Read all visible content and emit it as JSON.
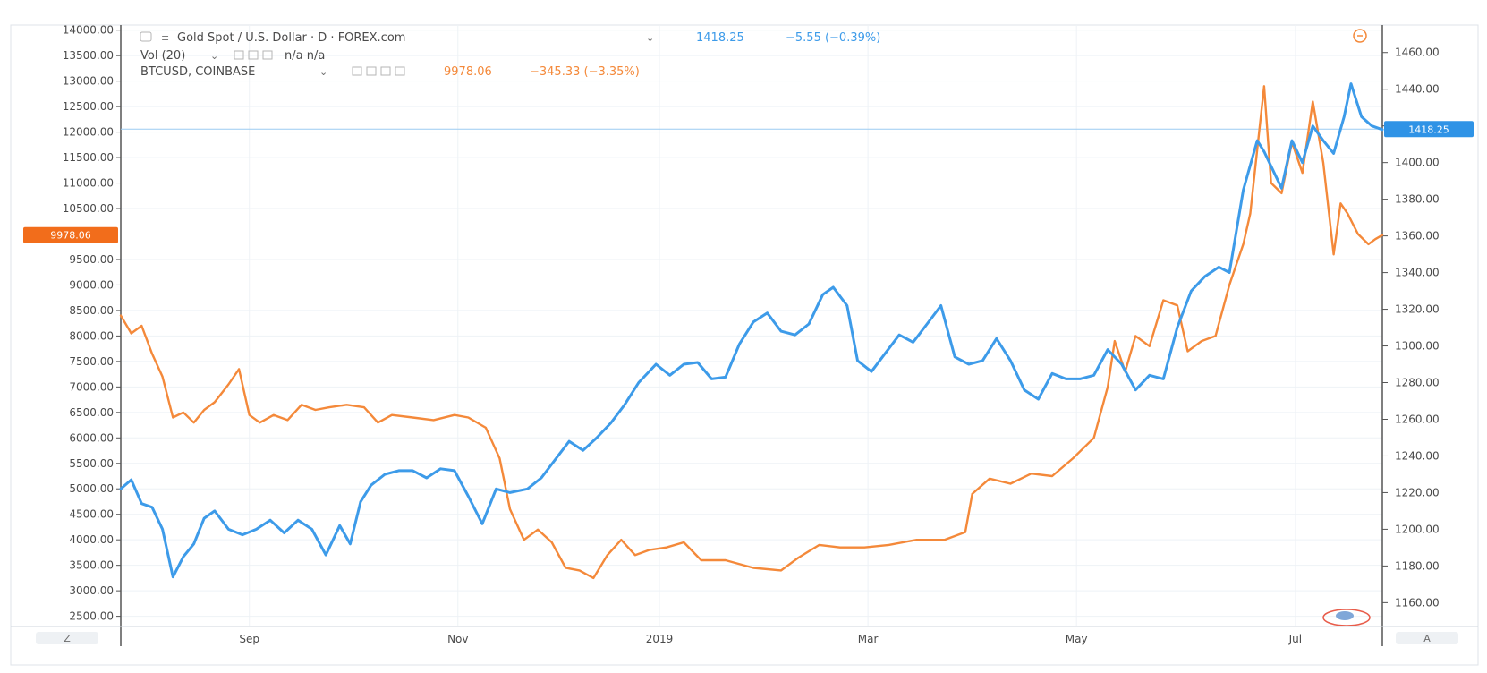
{
  "legend": {
    "gold_title": "Gold Spot / U.S. Dollar · D · FOREX.com",
    "gold_price": "1418.25",
    "gold_change": "−5.55 (−0.39%)",
    "vol_label": "Vol (20)",
    "vol_values": "n/a  n/a",
    "btc_title": "BTCUSD, COINBASE",
    "btc_price": "9978.06",
    "btc_change": "−345.33 (−3.35%)"
  },
  "badges": {
    "btc_last": "9978.06",
    "gold_last": "1418.25"
  },
  "corner_labels": {
    "left": "Z",
    "right": "A"
  },
  "colors": {
    "gold": "#3d9be9",
    "btc": "#f4893a",
    "grid": "#eef2f6",
    "axis": "#555555",
    "text": "#4a4a4a"
  },
  "chart_data": {
    "type": "line",
    "x_ticks": [
      "Sep",
      "Nov",
      "2019",
      "Mar",
      "May",
      "Jul"
    ],
    "left_axis": {
      "ticks": [
        "2500.00",
        "3000.00",
        "3500.00",
        "4000.00",
        "4500.00",
        "5000.00",
        "5500.00",
        "6000.00",
        "6500.00",
        "7000.00",
        "7500.00",
        "8000.00",
        "8500.00",
        "9000.00",
        "9500.00",
        "10000.00",
        "10500.00",
        "11000.00",
        "11500.00",
        "12000.00",
        "12500.00",
        "13000.00",
        "13500.00",
        "14000.00"
      ],
      "range": [
        2300,
        14100
      ]
    },
    "right_axis": {
      "ticks": [
        "1160.00",
        "1180.00",
        "1200.00",
        "1220.00",
        "1240.00",
        "1260.00",
        "1280.00",
        "1300.00",
        "1320.00",
        "1340.00",
        "1360.00",
        "1380.00",
        "1400.00",
        "1420.00",
        "1440.00",
        "1460.00"
      ],
      "range": [
        1147,
        1475
      ]
    },
    "x_range": [
      "2018-08-01",
      "2019-07-30"
    ],
    "series": [
      {
        "name": "BTCUSD, COINBASE",
        "axis": "left",
        "color": "#f4893a",
        "points": [
          [
            "2018-08-01",
            8400
          ],
          [
            "2018-08-04",
            8050
          ],
          [
            "2018-08-07",
            8200
          ],
          [
            "2018-08-10",
            7650
          ],
          [
            "2018-08-13",
            7200
          ],
          [
            "2018-08-16",
            6400
          ],
          [
            "2018-08-19",
            6500
          ],
          [
            "2018-08-22",
            6300
          ],
          [
            "2018-08-25",
            6550
          ],
          [
            "2018-08-28",
            6700
          ],
          [
            "2018-09-01",
            7050
          ],
          [
            "2018-09-04",
            7350
          ],
          [
            "2018-09-07",
            6450
          ],
          [
            "2018-09-10",
            6300
          ],
          [
            "2018-09-14",
            6450
          ],
          [
            "2018-09-18",
            6350
          ],
          [
            "2018-09-22",
            6650
          ],
          [
            "2018-09-26",
            6550
          ],
          [
            "2018-09-30",
            6600
          ],
          [
            "2018-10-05",
            6650
          ],
          [
            "2018-10-10",
            6600
          ],
          [
            "2018-10-14",
            6300
          ],
          [
            "2018-10-18",
            6450
          ],
          [
            "2018-10-24",
            6400
          ],
          [
            "2018-10-30",
            6350
          ],
          [
            "2018-11-05",
            6450
          ],
          [
            "2018-11-09",
            6400
          ],
          [
            "2018-11-14",
            6200
          ],
          [
            "2018-11-18",
            5600
          ],
          [
            "2018-11-21",
            4600
          ],
          [
            "2018-11-25",
            4000
          ],
          [
            "2018-11-29",
            4200
          ],
          [
            "2018-12-03",
            3950
          ],
          [
            "2018-12-07",
            3450
          ],
          [
            "2018-12-11",
            3400
          ],
          [
            "2018-12-15",
            3250
          ],
          [
            "2018-12-19",
            3700
          ],
          [
            "2018-12-23",
            4000
          ],
          [
            "2018-12-27",
            3700
          ],
          [
            "2018-12-31",
            3800
          ],
          [
            "2019-01-05",
            3850
          ],
          [
            "2019-01-10",
            3950
          ],
          [
            "2019-01-15",
            3600
          ],
          [
            "2019-01-22",
            3600
          ],
          [
            "2019-01-30",
            3450
          ],
          [
            "2019-02-07",
            3400
          ],
          [
            "2019-02-12",
            3650
          ],
          [
            "2019-02-18",
            3900
          ],
          [
            "2019-02-24",
            3850
          ],
          [
            "2019-03-03",
            3850
          ],
          [
            "2019-03-10",
            3900
          ],
          [
            "2019-03-18",
            4000
          ],
          [
            "2019-03-26",
            4000
          ],
          [
            "2019-04-01",
            4150
          ],
          [
            "2019-04-03",
            4900
          ],
          [
            "2019-04-08",
            5200
          ],
          [
            "2019-04-14",
            5100
          ],
          [
            "2019-04-20",
            5300
          ],
          [
            "2019-04-26",
            5250
          ],
          [
            "2019-05-02",
            5600
          ],
          [
            "2019-05-08",
            6000
          ],
          [
            "2019-05-12",
            7000
          ],
          [
            "2019-05-14",
            7900
          ],
          [
            "2019-05-17",
            7300
          ],
          [
            "2019-05-20",
            8000
          ],
          [
            "2019-05-24",
            7800
          ],
          [
            "2019-05-28",
            8700
          ],
          [
            "2019-06-01",
            8600
          ],
          [
            "2019-06-04",
            7700
          ],
          [
            "2019-06-08",
            7900
          ],
          [
            "2019-06-12",
            8000
          ],
          [
            "2019-06-16",
            9000
          ],
          [
            "2019-06-20",
            9800
          ],
          [
            "2019-06-22",
            10400
          ],
          [
            "2019-06-26",
            12900
          ],
          [
            "2019-06-28",
            11000
          ],
          [
            "2019-07-01",
            10800
          ],
          [
            "2019-07-04",
            11800
          ],
          [
            "2019-07-07",
            11200
          ],
          [
            "2019-07-10",
            12600
          ],
          [
            "2019-07-13",
            11400
          ],
          [
            "2019-07-16",
            9600
          ],
          [
            "2019-07-18",
            10600
          ],
          [
            "2019-07-20",
            10400
          ],
          [
            "2019-07-23",
            10000
          ],
          [
            "2019-07-26",
            9800
          ],
          [
            "2019-07-28",
            9900
          ],
          [
            "2019-07-30",
            9978
          ]
        ]
      },
      {
        "name": "Gold Spot / U.S. Dollar",
        "axis": "right",
        "color": "#3d9be9",
        "points": [
          [
            "2018-08-01",
            1222
          ],
          [
            "2018-08-04",
            1227
          ],
          [
            "2018-08-07",
            1214
          ],
          [
            "2018-08-10",
            1212
          ],
          [
            "2018-08-13",
            1200
          ],
          [
            "2018-08-16",
            1174
          ],
          [
            "2018-08-19",
            1185
          ],
          [
            "2018-08-22",
            1192
          ],
          [
            "2018-08-25",
            1206
          ],
          [
            "2018-08-28",
            1210
          ],
          [
            "2018-09-01",
            1200
          ],
          [
            "2018-09-05",
            1197
          ],
          [
            "2018-09-09",
            1200
          ],
          [
            "2018-09-13",
            1205
          ],
          [
            "2018-09-17",
            1198
          ],
          [
            "2018-09-21",
            1205
          ],
          [
            "2018-09-25",
            1200
          ],
          [
            "2018-09-29",
            1186
          ],
          [
            "2018-10-03",
            1202
          ],
          [
            "2018-10-06",
            1192
          ],
          [
            "2018-10-09",
            1215
          ],
          [
            "2018-10-12",
            1224
          ],
          [
            "2018-10-16",
            1230
          ],
          [
            "2018-10-20",
            1232
          ],
          [
            "2018-10-24",
            1232
          ],
          [
            "2018-10-28",
            1228
          ],
          [
            "2018-11-01",
            1233
          ],
          [
            "2018-11-05",
            1232
          ],
          [
            "2018-11-09",
            1218
          ],
          [
            "2018-11-13",
            1203
          ],
          [
            "2018-11-17",
            1222
          ],
          [
            "2018-11-21",
            1220
          ],
          [
            "2018-11-26",
            1222
          ],
          [
            "2018-11-30",
            1228
          ],
          [
            "2018-12-04",
            1238
          ],
          [
            "2018-12-08",
            1248
          ],
          [
            "2018-12-12",
            1243
          ],
          [
            "2018-12-16",
            1250
          ],
          [
            "2018-12-20",
            1258
          ],
          [
            "2018-12-24",
            1268
          ],
          [
            "2018-12-28",
            1280
          ],
          [
            "2019-01-02",
            1290
          ],
          [
            "2019-01-06",
            1284
          ],
          [
            "2019-01-10",
            1290
          ],
          [
            "2019-01-14",
            1291
          ],
          [
            "2019-01-18",
            1282
          ],
          [
            "2019-01-22",
            1283
          ],
          [
            "2019-01-26",
            1301
          ],
          [
            "2019-01-30",
            1313
          ],
          [
            "2019-02-03",
            1318
          ],
          [
            "2019-02-07",
            1308
          ],
          [
            "2019-02-11",
            1306
          ],
          [
            "2019-02-15",
            1312
          ],
          [
            "2019-02-19",
            1328
          ],
          [
            "2019-02-22",
            1332
          ],
          [
            "2019-02-26",
            1322
          ],
          [
            "2019-03-01",
            1292
          ],
          [
            "2019-03-05",
            1286
          ],
          [
            "2019-03-09",
            1296
          ],
          [
            "2019-03-13",
            1306
          ],
          [
            "2019-03-17",
            1302
          ],
          [
            "2019-03-21",
            1312
          ],
          [
            "2019-03-25",
            1322
          ],
          [
            "2019-03-29",
            1294
          ],
          [
            "2019-04-02",
            1290
          ],
          [
            "2019-04-06",
            1292
          ],
          [
            "2019-04-10",
            1304
          ],
          [
            "2019-04-14",
            1292
          ],
          [
            "2019-04-18",
            1276
          ],
          [
            "2019-04-22",
            1271
          ],
          [
            "2019-04-26",
            1285
          ],
          [
            "2019-04-30",
            1282
          ],
          [
            "2019-05-04",
            1282
          ],
          [
            "2019-05-08",
            1284
          ],
          [
            "2019-05-12",
            1298
          ],
          [
            "2019-05-16",
            1290
          ],
          [
            "2019-05-20",
            1276
          ],
          [
            "2019-05-24",
            1284
          ],
          [
            "2019-05-28",
            1282
          ],
          [
            "2019-06-01",
            1310
          ],
          [
            "2019-06-05",
            1330
          ],
          [
            "2019-06-09",
            1338
          ],
          [
            "2019-06-13",
            1343
          ],
          [
            "2019-06-16",
            1340
          ],
          [
            "2019-06-20",
            1385
          ],
          [
            "2019-06-24",
            1412
          ],
          [
            "2019-06-26",
            1406
          ],
          [
            "2019-06-28",
            1398
          ],
          [
            "2019-07-01",
            1386
          ],
          [
            "2019-07-04",
            1412
          ],
          [
            "2019-07-07",
            1400
          ],
          [
            "2019-07-10",
            1420
          ],
          [
            "2019-07-13",
            1412
          ],
          [
            "2019-07-16",
            1405
          ],
          [
            "2019-07-19",
            1425
          ],
          [
            "2019-07-21",
            1443
          ],
          [
            "2019-07-24",
            1425
          ],
          [
            "2019-07-27",
            1420
          ],
          [
            "2019-07-30",
            1418
          ]
        ]
      }
    ]
  }
}
